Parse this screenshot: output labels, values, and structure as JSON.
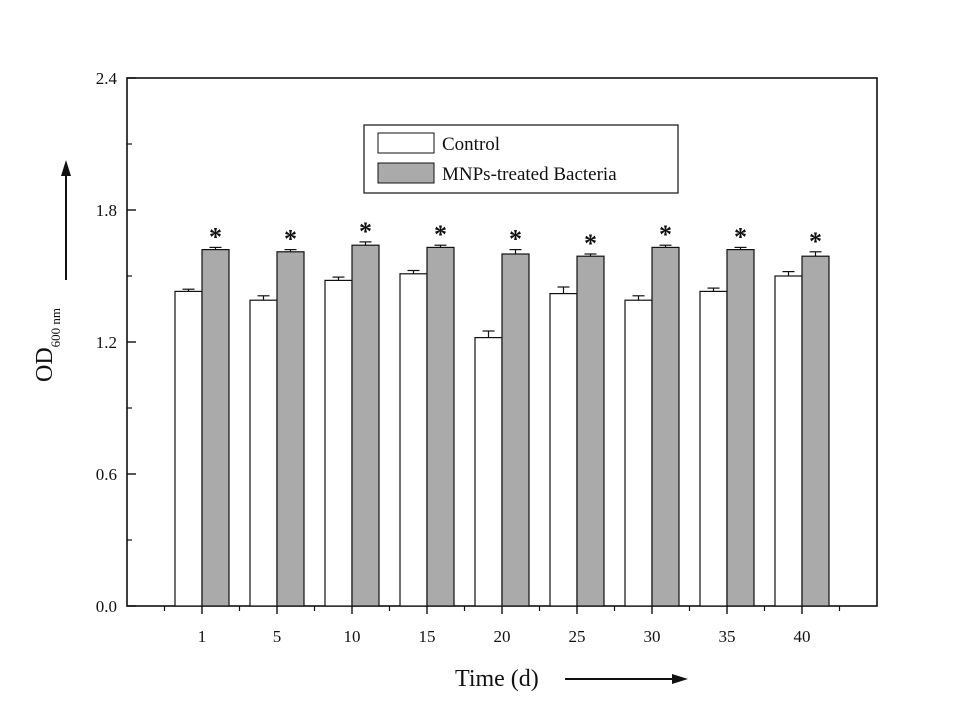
{
  "chart_data": {
    "type": "bar",
    "categories": [
      "1",
      "5",
      "10",
      "15",
      "20",
      "25",
      "30",
      "35",
      "40"
    ],
    "series": [
      {
        "name": "Control",
        "values": [
          1.43,
          1.39,
          1.48,
          1.51,
          1.22,
          1.42,
          1.39,
          1.43,
          1.5
        ],
        "errors": [
          0.01,
          0.02,
          0.015,
          0.015,
          0.03,
          0.03,
          0.02,
          0.015,
          0.02
        ],
        "color": "#ffffff"
      },
      {
        "name": "MNPs-treated Bacteria",
        "values": [
          1.62,
          1.61,
          1.64,
          1.63,
          1.6,
          1.59,
          1.63,
          1.62,
          1.59
        ],
        "errors": [
          0.01,
          0.01,
          0.015,
          0.01,
          0.02,
          0.01,
          0.01,
          0.01,
          0.02
        ],
        "color": "#aaaaaa"
      }
    ],
    "significance_marks": [
      "*",
      "*",
      "*",
      "*",
      "*",
      "*",
      "*",
      "*",
      "*"
    ],
    "xlabel": "Time (d)",
    "ylabel": "OD",
    "ylabel_subscript": "600 nm",
    "ylim": [
      0,
      2.4
    ],
    "yticks": [
      "0.0",
      "0.6",
      "1.2",
      "1.8",
      "2.4"
    ],
    "grid": false,
    "legend_position": "top-center"
  }
}
